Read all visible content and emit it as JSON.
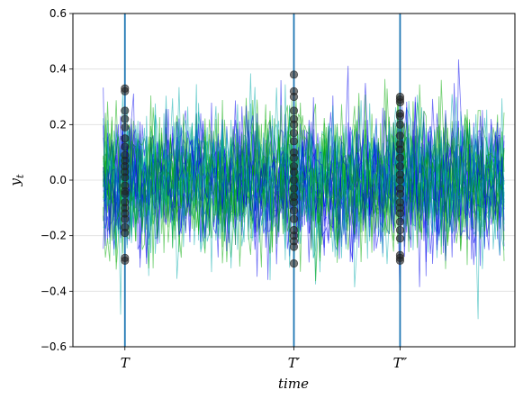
{
  "chart_data": {
    "type": "line",
    "title": "",
    "xlabel": "time",
    "ylabel": "y",
    "ylabel_subscript": "t",
    "ylim": [
      -0.6,
      0.6
    ],
    "xlim": [
      -14,
      190
    ],
    "yticks": [
      -0.6,
      -0.4,
      -0.2,
      0.0,
      0.2,
      0.4,
      0.6
    ],
    "ytick_labels": [
      "−0.6",
      "−0.4",
      "−0.2",
      "0.0",
      "0.2",
      "0.4",
      "0.6"
    ],
    "grid": "horizontal",
    "legend": "none",
    "n_series": 30,
    "n_points": 186,
    "series_noise_sd": 0.12,
    "series_colors": [
      "#0000ee",
      "#00aaaa",
      "#00aa00"
    ],
    "vertical_markers": [
      {
        "x": 10,
        "label": "T"
      },
      {
        "x": 88,
        "label": "T′"
      },
      {
        "x": 137,
        "label": "T″"
      }
    ],
    "marker_line_color": "#1f77b4",
    "sample_point_color": "#222222",
    "sample_values": {
      "T": [
        0.33,
        0.32,
        0.25,
        0.22,
        0.19,
        0.15,
        0.12,
        0.09,
        0.07,
        0.05,
        0.03,
        0.01,
        -0.02,
        -0.04,
        -0.05,
        -0.08,
        -0.1,
        -0.12,
        -0.14,
        -0.17,
        -0.19,
        -0.28,
        -0.29
      ],
      "T′": [
        0.38,
        0.32,
        0.3,
        0.25,
        0.22,
        0.2,
        0.17,
        0.14,
        0.1,
        0.08,
        0.05,
        0.03,
        0.0,
        -0.03,
        -0.06,
        -0.08,
        -0.11,
        -0.14,
        -0.18,
        -0.2,
        -0.22,
        -0.24,
        -0.3
      ],
      "T″": [
        0.3,
        0.29,
        0.28,
        0.24,
        0.23,
        0.2,
        0.16,
        0.13,
        0.11,
        0.08,
        0.05,
        0.02,
        0.0,
        -0.03,
        -0.05,
        -0.08,
        -0.1,
        -0.12,
        -0.15,
        -0.18,
        -0.21,
        -0.27,
        -0.28,
        -0.29
      ]
    }
  }
}
